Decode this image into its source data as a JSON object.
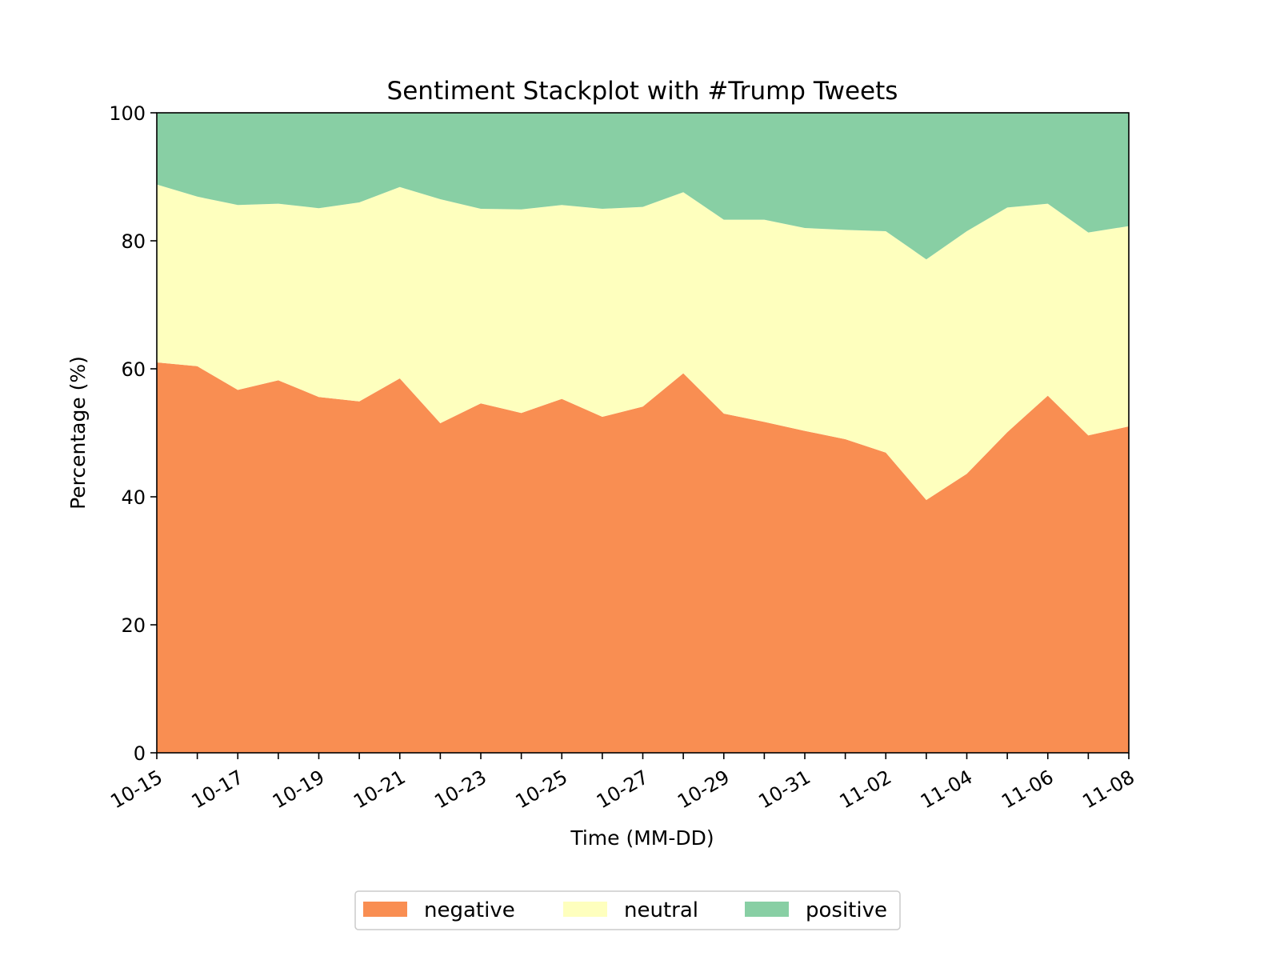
{
  "chart_data": {
    "type": "area",
    "stacked": true,
    "title": "Sentiment Stackplot with #Trump Tweets",
    "xlabel": "Time (MM-DD)",
    "ylabel": "Percentage (%)",
    "ylim": [
      0,
      100
    ],
    "yticks": [
      0,
      20,
      40,
      60,
      80,
      100
    ],
    "x": [
      "10-15",
      "10-16",
      "10-17",
      "10-18",
      "10-19",
      "10-20",
      "10-21",
      "10-22",
      "10-23",
      "10-24",
      "10-25",
      "10-26",
      "10-27",
      "10-28",
      "10-29",
      "10-30",
      "10-31",
      "11-01",
      "11-02",
      "11-03",
      "11-04",
      "11-05",
      "11-06",
      "11-07",
      "11-08"
    ],
    "xtick_labels": [
      "10-15",
      "10-17",
      "10-19",
      "10-21",
      "10-23",
      "10-25",
      "10-27",
      "10-29",
      "10-31",
      "11-02",
      "11-04",
      "11-06",
      "11-08"
    ],
    "grid": false,
    "legend_position": "bottom-center",
    "series": [
      {
        "name": "negative",
        "color": "#f98e52",
        "values": [
          61.0,
          60.4,
          56.7,
          58.2,
          55.6,
          54.9,
          58.5,
          51.5,
          54.6,
          53.1,
          55.3,
          52.5,
          54.1,
          59.3,
          53.0,
          51.7,
          50.3,
          49.0,
          46.9,
          39.5,
          43.6,
          50.1,
          55.8,
          49.6,
          51.0
        ]
      },
      {
        "name": "neutral",
        "color": "#feffbe",
        "values": [
          27.8,
          26.5,
          28.9,
          27.6,
          29.5,
          31.1,
          29.9,
          35.0,
          30.4,
          31.8,
          30.3,
          32.5,
          31.2,
          28.3,
          30.3,
          31.6,
          31.7,
          32.7,
          34.6,
          37.6,
          37.9,
          35.1,
          30.0,
          31.7,
          31.3
        ]
      },
      {
        "name": "positive",
        "color": "#88cfa4",
        "values": [
          11.2,
          13.1,
          14.4,
          14.2,
          14.9,
          14.0,
          11.6,
          13.5,
          15.0,
          15.1,
          14.4,
          15.0,
          14.7,
          12.4,
          16.7,
          16.7,
          18.0,
          18.3,
          18.5,
          22.9,
          18.5,
          14.8,
          14.2,
          18.7,
          17.7
        ]
      }
    ]
  }
}
